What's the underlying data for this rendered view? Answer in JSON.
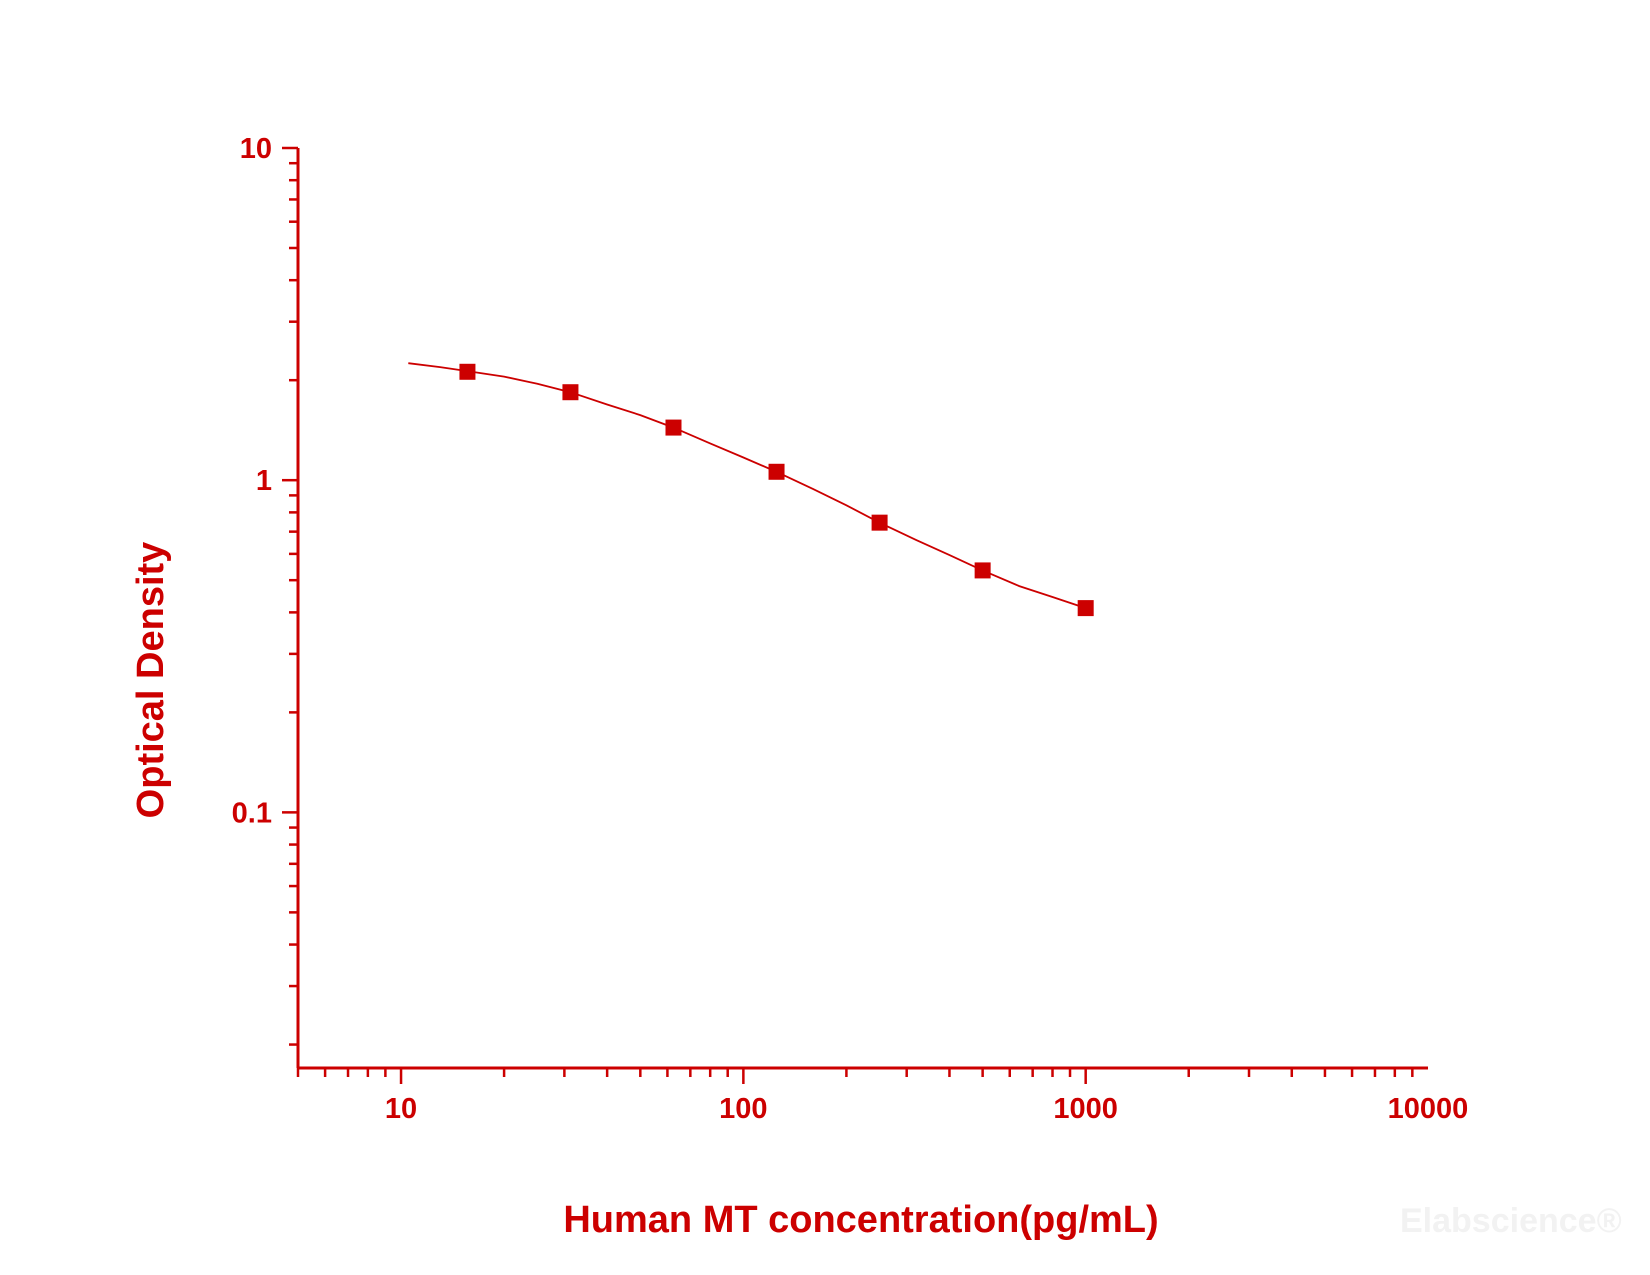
{
  "chart_data": {
    "type": "scatter",
    "xlabel": "Human MT concentration(pg/mL)",
    "ylabel": "Optical Density",
    "x_scale": "log",
    "y_scale": "log",
    "xlim": [
      5,
      10000
    ],
    "ylim": [
      0.017,
      10
    ],
    "x_ticks": [
      "10",
      "100",
      "1000",
      "10000"
    ],
    "y_ticks": [
      "10",
      "1",
      "0.1"
    ],
    "grid": false,
    "color": "#cc0000",
    "series": [
      {
        "x": [
          15.63,
          31.25,
          62.5,
          125,
          250,
          500,
          1000
        ],
        "y": [
          2.12,
          1.84,
          1.44,
          1.06,
          0.745,
          0.535,
          0.412
        ]
      }
    ],
    "fit_curve": {
      "x": [
        10.5,
        13,
        15.63,
        20,
        25,
        31.25,
        40,
        50,
        62.5,
        80,
        100,
        125,
        160,
        200,
        250,
        320,
        400,
        500,
        640,
        800,
        1000
      ],
      "y": [
        2.25,
        2.19,
        2.13,
        2.05,
        1.95,
        1.84,
        1.69,
        1.57,
        1.44,
        1.29,
        1.17,
        1.06,
        0.94,
        0.84,
        0.745,
        0.66,
        0.595,
        0.535,
        0.48,
        0.445,
        0.412
      ]
    }
  },
  "watermark": "Elabscience®"
}
